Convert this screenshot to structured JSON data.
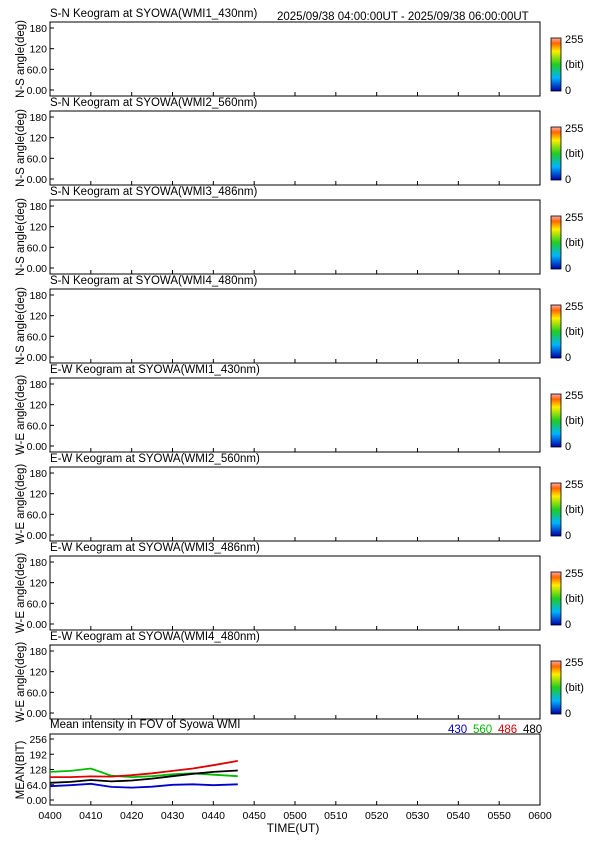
{
  "header": {
    "time_range": "2025/09/38 04:00:00UT - 2025/09/38 06:00:00UT"
  },
  "keogram_panels": [
    {
      "title": "S-N Keogram at SYOWA(WMI1_430nm)",
      "ylabel": "N-S angle(deg)",
      "base": [
        40,
        100,
        200
      ],
      "features": [
        {
          "kind": "band_top",
          "color": [
            0,
            0,
            140
          ]
        },
        {
          "kind": "spot",
          "t": 0.68,
          "a": 0.52,
          "color": [
            255,
            230,
            0
          ]
        }
      ]
    },
    {
      "title": "S-N Keogram at SYOWA(WMI2_560nm)",
      "ylabel": "N-S angle(deg)",
      "base": [
        150,
        210,
        60
      ],
      "features": [
        {
          "kind": "band_top",
          "color": [
            0,
            0,
            0
          ]
        }
      ]
    },
    {
      "title": "S-N Keogram at SYOWA(WMI3_486nm)",
      "ylabel": "N-S angle(deg)",
      "base": [
        80,
        195,
        90
      ],
      "features": [
        {
          "kind": "corner_bright",
          "color": [
            255,
            110,
            20
          ]
        },
        {
          "kind": "hline",
          "a": 0.38,
          "color": [
            255,
            220,
            0
          ]
        }
      ]
    },
    {
      "title": "S-N Keogram at SYOWA(WMI4_480nm)",
      "ylabel": "N-S angle(deg)",
      "base": [
        80,
        195,
        90
      ],
      "features": [
        {
          "kind": "band_bottom",
          "color": [
            0,
            0,
            130
          ]
        },
        {
          "kind": "hline",
          "a": 0.38,
          "color": [
            255,
            220,
            0
          ]
        }
      ]
    },
    {
      "title": "E-W Keogram at SYOWA(WMI1_430nm)",
      "ylabel": "W-E angle(deg)",
      "base": [
        50,
        120,
        190
      ],
      "features": [
        {
          "kind": "spot",
          "t": 0.65,
          "a": 0.62,
          "color": [
            255,
            230,
            0
          ]
        }
      ]
    },
    {
      "title": "E-W Keogram at SYOWA(WMI2_560nm)",
      "ylabel": "W-E angle(deg)",
      "base": [
        150,
        210,
        60
      ],
      "features": [
        {
          "kind": "corner_bottom_left",
          "color": [
            255,
            150,
            30
          ]
        }
      ]
    },
    {
      "title": "E-W Keogram at SYOWA(WMI3_486nm)",
      "ylabel": "W-E angle(deg)",
      "base": [
        90,
        200,
        90
      ],
      "features": [
        {
          "kind": "corner_bright",
          "color": [
            255,
            80,
            30
          ]
        }
      ]
    },
    {
      "title": "E-W Keogram at SYOWA(WMI4_480nm)",
      "ylabel": "W-E angle(deg)",
      "base": [
        90,
        200,
        90
      ],
      "features": [
        {
          "kind": "band_top",
          "color": [
            0,
            0,
            130
          ]
        },
        {
          "kind": "corner_bright",
          "color": [
            255,
            100,
            30
          ]
        }
      ]
    }
  ],
  "angle_ticks": [
    "180",
    "120",
    "60.0",
    "0.00"
  ],
  "colorbar": {
    "max_label": "255",
    "unit_label": "(bit)",
    "min_label": "0"
  },
  "chart_data": {
    "type": "line",
    "title": "Mean intensity in FOV of Syowa WMI",
    "ylabel": "MEAN(BIT)",
    "xlabel": "TIME(UT)",
    "xlim": [
      "04:00",
      "06:00"
    ],
    "ylim": [
      0,
      256
    ],
    "ytick_labels": [
      "256",
      "192",
      "128",
      "64.0",
      "0.00"
    ],
    "xtick_labels": [
      "0400",
      "0410",
      "0420",
      "0430",
      "0440",
      "0450",
      "0500",
      "0510",
      "0520",
      "0530",
      "0540",
      "0550",
      "0600"
    ],
    "x_minutes": [
      0,
      5,
      10,
      15,
      20,
      25,
      30,
      35,
      40,
      46
    ],
    "series": [
      {
        "name": "430",
        "color": "#0000cc",
        "values": [
          58,
          62,
          68,
          55,
          52,
          56,
          64,
          66,
          62,
          66
        ]
      },
      {
        "name": "560",
        "color": "#00bb00",
        "values": [
          118,
          122,
          132,
          102,
          96,
          100,
          108,
          112,
          106,
          100
        ]
      },
      {
        "name": "486",
        "color": "#dd0000",
        "values": [
          96,
          96,
          99,
          98,
          104,
          112,
          122,
          132,
          146,
          164
        ]
      },
      {
        "name": "480",
        "color": "#000000",
        "values": [
          72,
          76,
          84,
          78,
          82,
          90,
          100,
          110,
          118,
          124
        ]
      }
    ]
  }
}
